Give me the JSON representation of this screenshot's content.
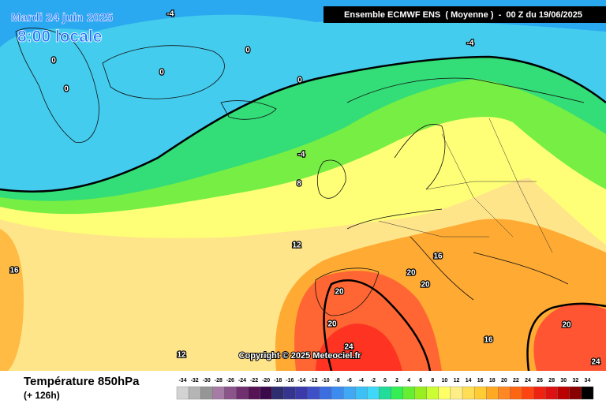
{
  "header": {
    "date": "Mardi 24 juin 2025",
    "time": "8:00 locale",
    "run": "Ensemble ECMWF ENS  ( Moyenne )  -  00 Z du 19/06/2025"
  },
  "footer": {
    "title": "Température 850hPa",
    "lead": "(+ 126h)",
    "copyright": "Copyright © 2025 Meteociel.fr"
  },
  "legend": {
    "values": [
      -34,
      -32,
      -30,
      -28,
      -26,
      -24,
      -22,
      -20,
      -18,
      -16,
      -14,
      -12,
      -10,
      -8,
      -6,
      -4,
      -2,
      0,
      2,
      4,
      6,
      8,
      10,
      12,
      14,
      16,
      18,
      20,
      22,
      24,
      26,
      28,
      30,
      32,
      34
    ],
    "colors": [
      "#d3d3d3",
      "#b5b5b5",
      "#969696",
      "#a67ba6",
      "#8b558b",
      "#703070",
      "#561456",
      "#3a0a4a",
      "#2d2d70",
      "#353590",
      "#3a3aaa",
      "#3d50c8",
      "#3d6ee0",
      "#3c8cf0",
      "#40a8f5",
      "#3cc0f5",
      "#40d8f8",
      "#22dd99",
      "#33ee55",
      "#66ee33",
      "#99ee22",
      "#ccff33",
      "#ffff66",
      "#ffee88",
      "#ffdd55",
      "#ffcc33",
      "#ffaa22",
      "#ff8822",
      "#ff6611",
      "#ff4411",
      "#ee2211",
      "#dd1111",
      "#bb0000",
      "#880000",
      "#000000"
    ]
  },
  "contour_labels": [
    -4,
    0,
    0,
    0,
    0,
    0,
    -4,
    -4,
    8,
    12,
    16,
    16,
    20,
    20,
    20,
    20,
    24,
    16,
    20,
    24,
    12
  ]
}
